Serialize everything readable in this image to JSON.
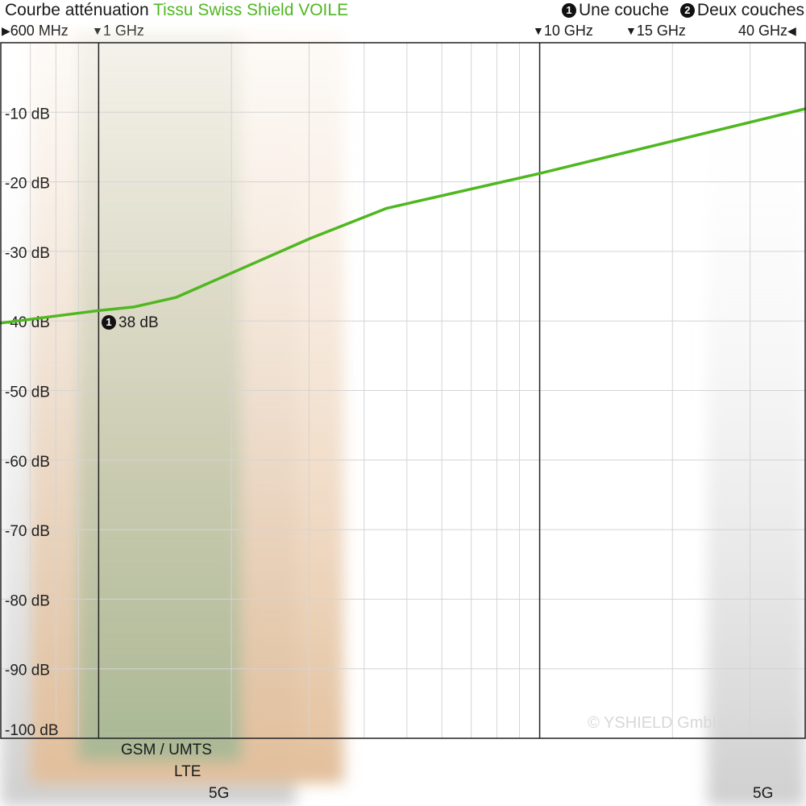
{
  "header": {
    "title_prefix": "Courbe atténuation",
    "title_product": "Tissu Swiss Shield VOILE",
    "legend": [
      {
        "badge": "1",
        "label": "Une couche"
      },
      {
        "badge": "2",
        "label": "Deux couches"
      }
    ]
  },
  "freq_markers": [
    {
      "label": "600 MHz",
      "glyph": "◀"
    },
    {
      "label": "1 GHz",
      "glyph": "▼"
    },
    {
      "label": "10 GHz",
      "glyph": "▼"
    },
    {
      "label": "15 GHz",
      "glyph": "▼"
    },
    {
      "label": "40 GHz",
      "glyph": "▶"
    }
  ],
  "bands": [
    {
      "label": "GSM / UMTS",
      "color": "#9fb08a"
    },
    {
      "label": "LTE",
      "color": "#e9c9a7"
    },
    {
      "label": "5G",
      "color": "#cfcfcf"
    },
    {
      "label": "5G",
      "color": "#cfcfcf"
    }
  ],
  "annotation": {
    "badge": "1",
    "label": "38 dB"
  },
  "copyright": "© YSHIELD GmbH & Co. KG",
  "chart_data": {
    "type": "line",
    "title": "Courbe atténuation Tissu Swiss Shield VOILE",
    "xlabel": "",
    "ylabel": "",
    "x_scale": "log",
    "xlim": [
      0.6,
      40
    ],
    "ylim": [
      -100,
      0
    ],
    "grid": true,
    "legend_position": "top-right",
    "y_ticks": [
      "-10 dB",
      "-20 dB",
      "-30 dB",
      "-40 dB",
      "-50 dB",
      "-60 dB",
      "-70 dB",
      "-80 dB",
      "-90 dB",
      "-100 dB"
    ],
    "y_tick_values": [
      -10,
      -20,
      -30,
      -40,
      -50,
      -60,
      -70,
      -80,
      -90,
      -100
    ],
    "series": [
      {
        "name": "Une couche",
        "color": "#4fb720",
        "x": [
          0.6,
          1.0,
          1.2,
          1.5,
          3.0,
          4.5,
          10,
          40
        ],
        "y": [
          -40.3,
          -38.5,
          -38.0,
          -36.6,
          -28.2,
          -23.8,
          -18.8,
          -9.5
        ]
      }
    ],
    "markers_ghz": [
      0.6,
      1,
      10,
      15,
      40
    ]
  }
}
